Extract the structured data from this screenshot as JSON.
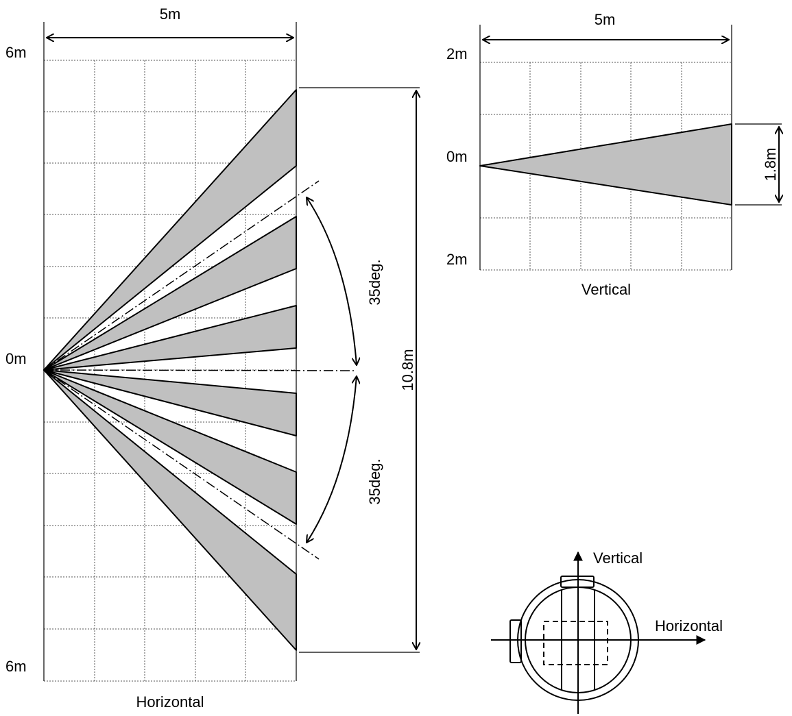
{
  "horizontal_view": {
    "width_label": "5m",
    "top_label": "6m",
    "center_label": "0m",
    "bottom_label": "6m",
    "span_label": "10.8m",
    "angle_upper_label": "35deg.",
    "angle_lower_label": "35deg.",
    "caption": "Horizontal"
  },
  "vertical_view": {
    "width_label": "5m",
    "top_label": "2m",
    "center_label": "0m",
    "bottom_label": "2m",
    "height_label": "1.8m",
    "caption": "Vertical"
  },
  "sensor_orientation": {
    "vertical_label": "Vertical",
    "horizontal_label": "Horizontal"
  }
}
